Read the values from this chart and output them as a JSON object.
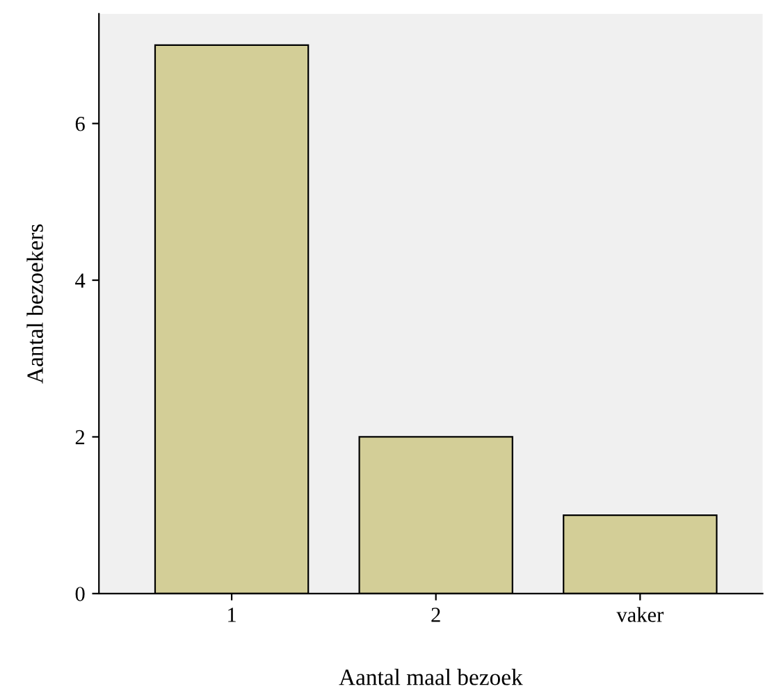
{
  "chart_data": {
    "type": "bar",
    "xlabel": "Aantal maal bezoek",
    "ylabel": "Aantal bezoekers",
    "categories": [
      "1",
      "2",
      "vaker"
    ],
    "values": [
      7,
      2,
      1
    ],
    "color": "#d3ce97",
    "ylim": [
      0,
      7.4
    ],
    "yticks": [
      0,
      2,
      4,
      6
    ],
    "grid": false,
    "legend": false
  }
}
